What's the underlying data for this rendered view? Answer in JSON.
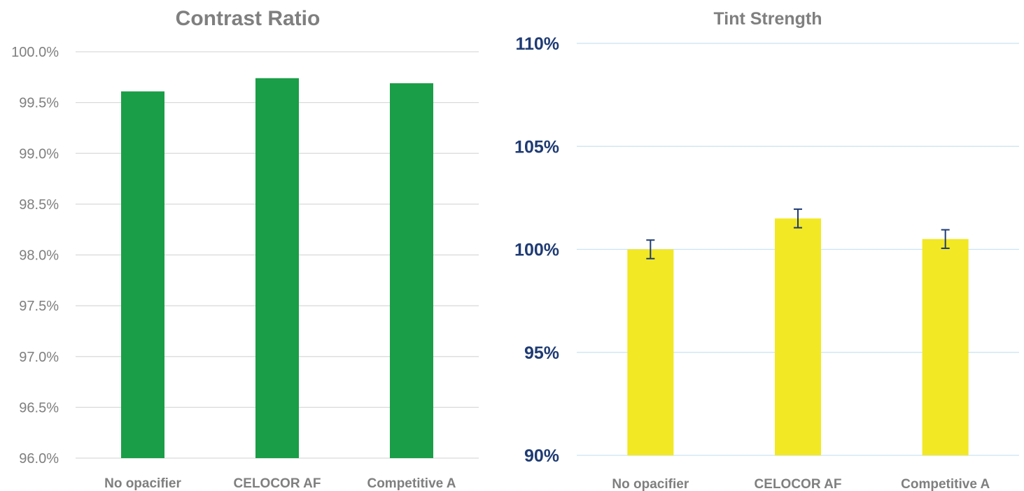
{
  "chart_data": [
    {
      "type": "bar",
      "title": "Contrast Ratio",
      "categories": [
        "No opacifier",
        "CELOCOR AF",
        "Competitive A"
      ],
      "values": [
        99.61,
        99.74,
        99.69
      ],
      "ylim": [
        96.0,
        100.0
      ],
      "yticks": [
        "96.0%",
        "96.5%",
        "97.0%",
        "97.5%",
        "98.0%",
        "98.5%",
        "99.0%",
        "99.5%",
        "100.0%"
      ],
      "ytick_values": [
        96.0,
        96.5,
        97.0,
        97.5,
        98.0,
        98.5,
        99.0,
        99.5,
        100.0
      ],
      "bar_color": "#1a9e47",
      "grid": true,
      "legend": "none"
    },
    {
      "type": "bar",
      "title": "Tint Strength",
      "categories": [
        "No opacifier",
        "CELOCOR AF",
        "Competitive A"
      ],
      "values": [
        100.0,
        101.5,
        100.5
      ],
      "error": [
        0.45,
        0.45,
        0.45
      ],
      "ylim": [
        90,
        110
      ],
      "yticks": [
        "90%",
        "95%",
        "100%",
        "105%",
        "110%"
      ],
      "ytick_values": [
        90,
        95,
        100,
        105,
        110
      ],
      "bar_color": "#f2e824",
      "error_color": "#1f3b73",
      "grid": true,
      "legend": "none"
    }
  ]
}
